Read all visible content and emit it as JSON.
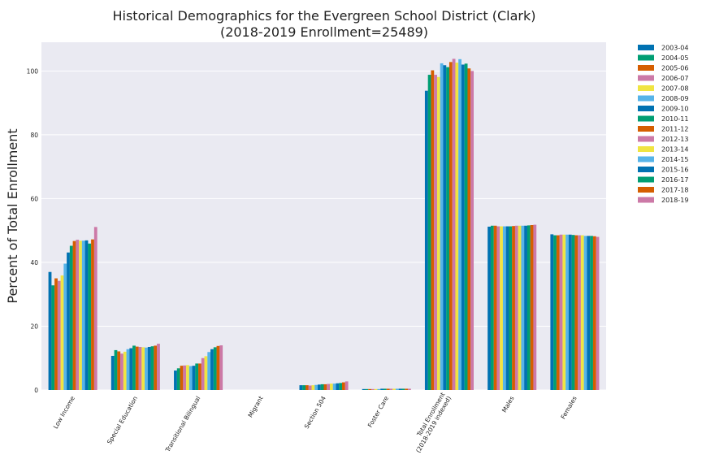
{
  "chart_data": {
    "type": "bar",
    "title": "Historical Demographics for the Evergreen School District (Clark)",
    "subtitle": "(2018-2019 Enrollment=25489)",
    "xlabel": "",
    "ylabel": "Percent of Total Enrollment",
    "ylim": [
      0,
      109
    ],
    "yticks": [
      "0",
      "20",
      "40",
      "60",
      "80",
      "100"
    ],
    "grid": true,
    "legend_position": "outside-right",
    "categories": [
      "Low Income",
      "Special Education",
      "Transitional Bilingual",
      "Migrant",
      "Section 504",
      "Foster Care",
      "Total Enrollment\n(2018-2019 indexed)",
      "Males",
      "Females"
    ],
    "colors": [
      "#0072b2",
      "#009e73",
      "#d55e00",
      "#cc79a7",
      "#f0e442",
      "#56b4e9"
    ],
    "series": [
      {
        "name": "2003-04",
        "values": [
          37.0,
          10.7,
          6.1,
          0,
          1.5,
          0.3,
          93.8,
          51.2,
          48.8
        ]
      },
      {
        "name": "2004-05",
        "values": [
          32.8,
          12.5,
          6.8,
          0,
          1.5,
          0.3,
          98.8,
          51.5,
          48.5
        ]
      },
      {
        "name": "2005-06",
        "values": [
          35.0,
          12.1,
          7.6,
          0,
          1.5,
          0.3,
          100.2,
          51.5,
          48.5
        ]
      },
      {
        "name": "2006-07",
        "values": [
          34.2,
          11.4,
          7.7,
          0,
          1.4,
          0.3,
          98.8,
          51.3,
          48.7
        ]
      },
      {
        "name": "2007-08",
        "values": [
          35.9,
          12.0,
          7.8,
          0,
          1.5,
          0.3,
          98.1,
          51.3,
          48.7
        ]
      },
      {
        "name": "2008-09",
        "values": [
          39.6,
          12.8,
          7.5,
          0,
          1.6,
          0.3,
          102.4,
          51.3,
          48.7
        ]
      },
      {
        "name": "2009-10",
        "values": [
          43.1,
          13.1,
          7.6,
          0,
          1.7,
          0.4,
          101.8,
          51.3,
          48.7
        ]
      },
      {
        "name": "2010-11",
        "values": [
          45.2,
          13.9,
          8.3,
          0,
          1.8,
          0.4,
          101.2,
          51.3,
          48.6
        ]
      },
      {
        "name": "2011-12",
        "values": [
          46.7,
          13.6,
          8.3,
          0,
          1.8,
          0.4,
          102.8,
          51.4,
          48.5
        ]
      },
      {
        "name": "2012-13",
        "values": [
          47.1,
          13.5,
          10.0,
          0,
          1.9,
          0.4,
          103.8,
          51.5,
          48.5
        ]
      },
      {
        "name": "2013-14",
        "values": [
          46.8,
          13.4,
          10.6,
          0,
          2.0,
          0.4,
          102.6,
          51.5,
          48.5
        ]
      },
      {
        "name": "2014-15",
        "values": [
          46.8,
          13.3,
          11.9,
          0,
          2.0,
          0.4,
          103.7,
          51.5,
          48.3
        ]
      },
      {
        "name": "2015-16",
        "values": [
          46.9,
          13.5,
          12.8,
          0,
          2.1,
          0.4,
          102.0,
          51.5,
          48.3
        ]
      },
      {
        "name": "2016-17",
        "values": [
          45.9,
          13.7,
          13.4,
          0,
          2.2,
          0.4,
          102.3,
          51.6,
          48.3
        ]
      },
      {
        "name": "2017-18",
        "values": [
          47.2,
          13.9,
          13.8,
          0,
          2.4,
          0.4,
          100.8,
          51.7,
          48.2
        ]
      },
      {
        "name": "2018-19",
        "values": [
          51.1,
          14.5,
          14.0,
          0,
          2.7,
          0.4,
          100.0,
          51.8,
          48.0
        ]
      }
    ]
  }
}
